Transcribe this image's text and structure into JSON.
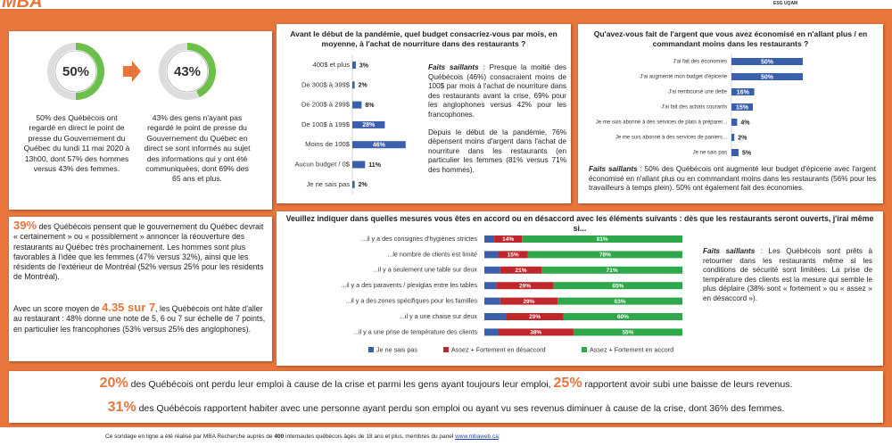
{
  "header": {
    "logo": "MBA",
    "partner": "ESG UQAM"
  },
  "intro": {
    "left": "50% des Québécois ont regardé en direct le point de presse du Gouvernement du Québec du lundi 11 mai 2020 à 13h00, dont 57% des hommes versus 43% des femmes.",
    "right": "43% des gens n'ayant pas regardé le point de presse du Gouvernement du Québec en direct se sont informés au sujet des informations qui y ont été communiquées, dont 69% des 65 ans et plus."
  },
  "chart_data": [
    {
      "type": "donut",
      "values": [
        50,
        43
      ],
      "value_labels": [
        "50%",
        "43%"
      ],
      "color": "#6cc04a",
      "track_color": "#dddddd"
    },
    {
      "type": "hbar",
      "title": "Avant le début de la pandémie, quel budget consacriez-vous par mois, en moyenne, à l'achat de nourriture dans des restaurants ?",
      "categories": [
        "400$ et plus",
        "De 300$ à 399$",
        "De 200$ à 299$",
        "De 100$ à 199$",
        "Moins de 100$",
        "Aucun budget / 0$",
        "Je ne sais pas"
      ],
      "values": [
        3,
        2,
        8,
        28,
        46,
        11,
        2
      ],
      "value_labels": [
        "3%",
        "2%",
        "8%",
        "28%",
        "46%",
        "11%",
        "2%"
      ],
      "color": "#3a5fad",
      "xlim": [
        0,
        50
      ]
    },
    {
      "type": "hbar",
      "title": "Qu'avez-vous fait de l'argent que vous avez économisé en n'allant plus / en commandant moins dans les restaurants ?",
      "categories": [
        "J'ai fait des économies",
        "J'ai augmenté mon budget d'épicerie",
        "J'ai remboursé une dette",
        "J'ai fait des achats courants",
        "Je me suis abonné à des services de plats à préparer...",
        "Je me suis abonné à des services de paniers...",
        "Je ne sais pas"
      ],
      "values": [
        50,
        50,
        16,
        15,
        4,
        2,
        5
      ],
      "value_labels": [
        "50%",
        "50%",
        "16%",
        "15%",
        "4%",
        "2%",
        "5%"
      ],
      "color": "#3a5fad",
      "xlim": [
        0,
        50
      ]
    },
    {
      "type": "stacked-hbar",
      "title": "Veuillez indiquer dans quelles mesures vous êtes en accord ou en désaccord avec les éléments suivants : dès que les restaurants seront ouverts, j'irai même si...",
      "categories": [
        "...il y a des consignes d'hygiènes strictes",
        "...le nombre de clients est limité",
        "...il y a seulement une table sur deux",
        "...il y a des paravents / plexiglas entre les tables",
        "...il y a des zones spécifiques pour les familles",
        "...il y a une chaise sur deux",
        "...il y a une prise de température des clients"
      ],
      "series": [
        {
          "name": "Je ne sais pas",
          "color": "#3a5fad",
          "values": [
            5,
            7,
            8,
            6,
            8,
            11,
            7
          ]
        },
        {
          "name": "Assez + Fortement en désaccord",
          "color": "#c0272d",
          "values": [
            14,
            15,
            21,
            29,
            29,
            29,
            38
          ],
          "value_labels": [
            "14%",
            "15%",
            "21%",
            "29%",
            "29%",
            "29%",
            "38%"
          ]
        },
        {
          "name": "Assez + Fortement en accord",
          "color": "#2ea84a",
          "values": [
            81,
            78,
            71,
            65,
            63,
            60,
            55
          ],
          "value_labels": [
            "81%",
            "78%",
            "71%",
            "65%",
            "63%",
            "60%",
            "55%"
          ]
        }
      ],
      "xlim": [
        0,
        100
      ],
      "legend": "bottom"
    }
  ],
  "budget_facts": {
    "label": "Faits saillants",
    "text": " : Presque la moitié des Québécois (46%) consacraient moins de 100$ par mois à l'achat de nourriture dans des restaurants avant la crise, 69% pour les anglophones versus 42% pour les francophones.",
    "text2": "Depuis le début de la pandémie, 76% dépensent moins d'argent dans l'achat de nourriture dans les restaurants (en particulier les femmes (81% versus 71% des hommes)."
  },
  "savings_facts": {
    "label": "Faits saillants",
    "text": " : 50% des Québécois ont augmenté leur budget d'épicerie avec l'argent économisé en n'allant plus ou en commandant moins dans les restaurants (56% pour les travailleurs à temps plein). 50% ont également fait des économies."
  },
  "reopen_facts": {
    "label": "Faits saillants",
    "text": " : Les Québécois sont prêts à retourner dans les restaurants même si les conditions de sécurité sont limitées. La prise de température des clients est la mesure qui semble le plus déplaire (38% sont « fortement » ou « assez » en désaccord »)."
  },
  "opinion": {
    "p1": [
      {
        "big": "39%"
      },
      {
        "text": " des Québécois pensent que le gouvernement du Québec devrait « certainement » ou « possiblement » annoncer la réouverture des restaurants au Québec très prochainement. Les hommes sont plus favorables à l'idée que les femmes (47% versus 32%), ainsi que les résidents de l'extérieur de Montréal (52% versus 25% pour les résidents de Montréal)."
      }
    ],
    "p2": [
      {
        "text": "Avec un score moyen de "
      },
      {
        "big": "4.35 sur 7"
      },
      {
        "text": ", les Québécois ont hâte d'aller au restaurant : 48% donne une note de 5, 6 ou 7 sur échelle de 7 points, en particulier les francophones (53% versus 25% des anglophones)."
      }
    ]
  },
  "summary": {
    "lines": [
      [
        {
          "big": "20%"
        },
        {
          "text": " des Québécois ont perdu leur emploi à cause de la crise et parmi les gens ayant toujours leur emploi, "
        },
        {
          "big": "25%"
        },
        {
          "text": " rapportent avoir subi une baisse de leurs revenus."
        }
      ],
      [
        {
          "big": "31%"
        },
        {
          "text": " des Québécois rapportent habiter avec une personne ayant perdu son emploi ou ayant vu ses revenus diminuer à cause de la crise, dont 36% des femmes."
        }
      ]
    ]
  },
  "footer": [
    {
      "text": "Ce sondage en ligne a été réalisé par MBA Recherche auprès de "
    },
    {
      "strong": "400"
    },
    {
      "text": " internautes québécois âgés de 18 ans et plus, membres du panel "
    },
    {
      "link": "www.mbaweb.ca"
    },
    {
      "text": ";"
    }
  ]
}
